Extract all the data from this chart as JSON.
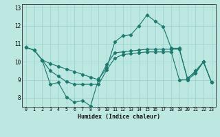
{
  "xlabel": "Humidex (Indice chaleur)",
  "background_color": "#bde8e2",
  "grid_color": "#9ed4ce",
  "line_color": "#1e7a6e",
  "xlim": [
    -0.5,
    23.5
  ],
  "ylim": [
    7.5,
    13.2
  ],
  "yticks": [
    8,
    9,
    10,
    11,
    12,
    13
  ],
  "xticks": [
    0,
    1,
    2,
    3,
    4,
    5,
    6,
    7,
    8,
    9,
    10,
    11,
    12,
    13,
    14,
    15,
    16,
    17,
    18,
    19,
    20,
    21,
    22,
    23
  ],
  "line1_x": [
    0,
    1,
    2,
    3,
    4,
    5,
    6,
    7,
    8,
    9,
    10,
    11,
    12,
    13,
    14,
    15,
    16,
    17,
    18,
    19,
    20,
    21,
    22,
    23
  ],
  "line1_y": [
    10.8,
    10.65,
    10.1,
    8.75,
    8.85,
    8.05,
    7.75,
    7.85,
    7.55,
    9.05,
    9.65,
    11.1,
    11.45,
    11.5,
    12.0,
    12.6,
    12.25,
    11.95,
    10.75,
    10.75,
    9.05,
    9.5,
    10.0,
    8.85
  ],
  "line2_x": [
    0,
    1,
    2,
    3,
    4,
    5,
    6,
    7,
    8,
    9,
    10,
    11,
    12,
    13,
    14,
    15,
    16,
    17,
    18,
    19,
    20,
    21,
    22,
    23
  ],
  "line2_y": [
    10.8,
    10.65,
    10.1,
    9.9,
    9.75,
    9.6,
    9.45,
    9.3,
    9.15,
    9.0,
    9.85,
    10.5,
    10.55,
    10.6,
    10.65,
    10.7,
    10.7,
    10.7,
    10.7,
    10.7,
    9.1,
    9.4,
    10.0,
    8.85
  ],
  "line3_x": [
    0,
    1,
    2,
    3,
    4,
    5,
    6,
    7,
    8,
    9,
    10,
    11,
    12,
    13,
    14,
    15,
    16,
    17,
    18,
    19,
    20,
    21,
    22,
    23
  ],
  "line3_y": [
    10.8,
    10.65,
    10.1,
    9.5,
    9.2,
    8.9,
    8.75,
    8.75,
    8.75,
    8.75,
    9.55,
    10.2,
    10.4,
    10.45,
    10.5,
    10.55,
    10.55,
    10.55,
    10.55,
    9.0,
    9.0,
    9.35,
    10.0,
    8.85
  ]
}
